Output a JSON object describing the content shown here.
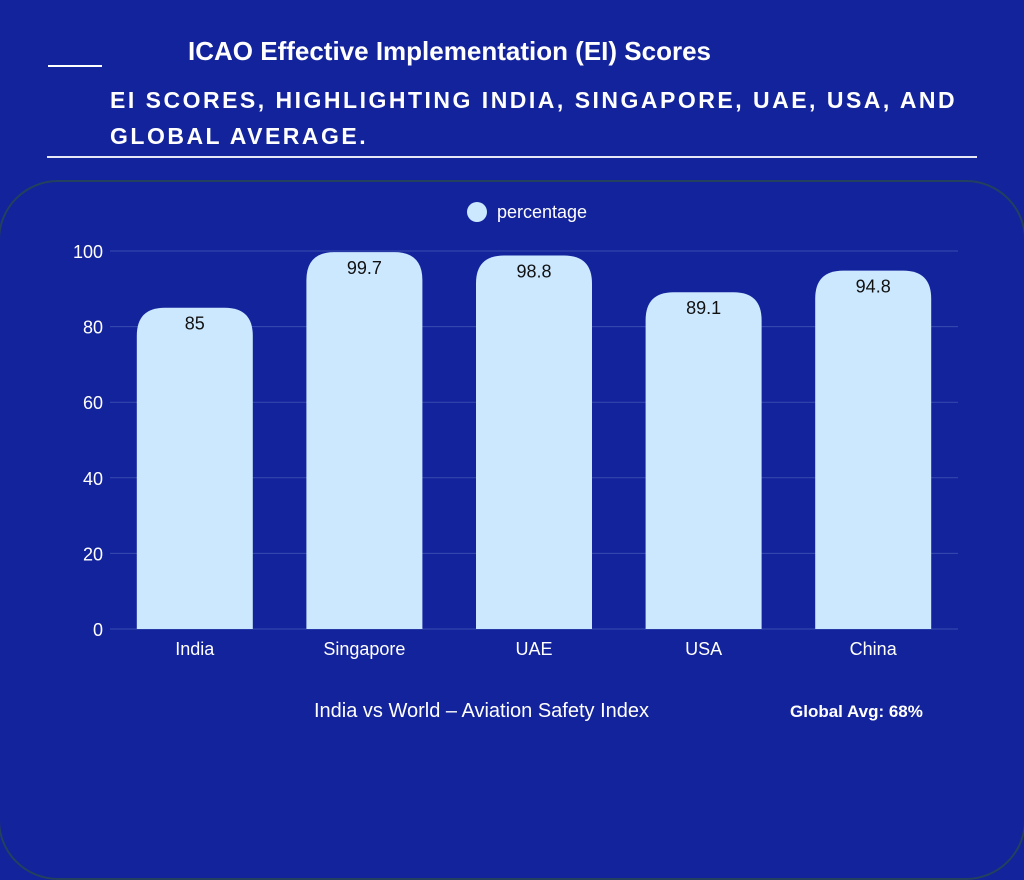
{
  "header": {
    "title": "ICAO Effective Implementation (EI) Scores",
    "subtitle": "EI SCORES, HIGHLIGHTING INDIA, SINGAPORE, UAE, USA, AND GLOBAL AVERAGE."
  },
  "footer": {
    "caption": "India vs World – Aviation Safety Index",
    "global_avg": "Global Avg: 68%"
  },
  "colors": {
    "background": "#13239b",
    "bar": "#cce8ff"
  },
  "chart_data": {
    "type": "bar",
    "categories": [
      "India",
      "Singapore",
      "UAE",
      "USA",
      "China"
    ],
    "series": [
      {
        "name": "percentage",
        "values": [
          85,
          99.7,
          98.8,
          89.1,
          94.8
        ]
      }
    ],
    "ylim": [
      0,
      100
    ],
    "yticks": [
      0,
      20,
      40,
      60,
      80,
      100
    ],
    "legend": "top-center",
    "grid": true
  }
}
